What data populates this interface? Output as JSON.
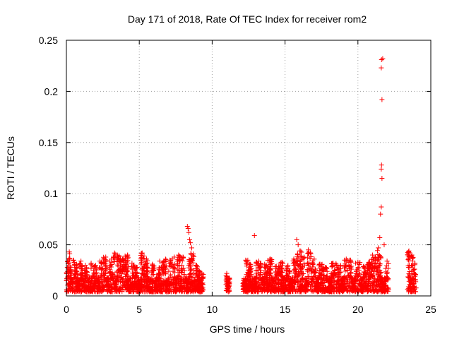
{
  "chart_data": {
    "type": "scatter",
    "title": "Day 171 of 2018, Rate Of TEC Index for receiver rom2",
    "xlabel": "GPS time / hours",
    "ylabel": "ROTI / TECUs",
    "xlim": [
      0,
      25
    ],
    "ylim": [
      0,
      0.25
    ],
    "x_ticks": [
      0,
      5,
      10,
      15,
      20,
      25
    ],
    "y_ticks": [
      0,
      0.05,
      0.1,
      0.15,
      0.2,
      0.25
    ],
    "x_tick_labels": [
      "0",
      "5",
      "10",
      "15",
      "20",
      "25"
    ],
    "y_tick_labels": [
      "0",
      "0.05",
      "0.1",
      "0.15",
      "0.2",
      "0.25"
    ],
    "grid": true,
    "marker": "plus",
    "color": "#ff0000",
    "points": [
      [
        0.1,
        0.034
      ],
      [
        0.2,
        0.043
      ],
      [
        0.3,
        0.028
      ],
      [
        0.5,
        0.035
      ],
      [
        0.7,
        0.031
      ],
      [
        1.0,
        0.034
      ],
      [
        1.3,
        0.03
      ],
      [
        1.7,
        0.032
      ],
      [
        2.0,
        0.03
      ],
      [
        2.3,
        0.034
      ],
      [
        2.7,
        0.038
      ],
      [
        3.1,
        0.036
      ],
      [
        3.3,
        0.042
      ],
      [
        3.5,
        0.04
      ],
      [
        4.2,
        0.04
      ],
      [
        4.5,
        0.032
      ],
      [
        4.8,
        0.028
      ],
      [
        5.2,
        0.042
      ],
      [
        5.5,
        0.036
      ],
      [
        5.9,
        0.031
      ],
      [
        6.4,
        0.034
      ],
      [
        6.8,
        0.036
      ],
      [
        7.1,
        0.035
      ],
      [
        7.4,
        0.038
      ],
      [
        7.7,
        0.04
      ],
      [
        8.0,
        0.038
      ],
      [
        8.3,
        0.068
      ],
      [
        8.35,
        0.066
      ],
      [
        8.4,
        0.062
      ],
      [
        8.45,
        0.055
      ],
      [
        8.5,
        0.052
      ],
      [
        8.6,
        0.047
      ],
      [
        8.7,
        0.041
      ],
      [
        8.9,
        0.03
      ],
      [
        9.1,
        0.025
      ],
      [
        9.3,
        0.022
      ],
      [
        11.0,
        0.022
      ],
      [
        11.1,
        0.015
      ],
      [
        12.3,
        0.035
      ],
      [
        12.6,
        0.031
      ],
      [
        12.9,
        0.059
      ],
      [
        13.2,
        0.034
      ],
      [
        13.6,
        0.031
      ],
      [
        14.0,
        0.036
      ],
      [
        14.4,
        0.029
      ],
      [
        14.8,
        0.033
      ],
      [
        15.2,
        0.03
      ],
      [
        15.6,
        0.036
      ],
      [
        15.8,
        0.055
      ],
      [
        15.9,
        0.05
      ],
      [
        16.0,
        0.044
      ],
      [
        16.3,
        0.038
      ],
      [
        16.6,
        0.045
      ],
      [
        17.0,
        0.036
      ],
      [
        17.4,
        0.031
      ],
      [
        17.8,
        0.028
      ],
      [
        18.3,
        0.032
      ],
      [
        18.8,
        0.03
      ],
      [
        19.2,
        0.036
      ],
      [
        19.5,
        0.035
      ],
      [
        20.0,
        0.033
      ],
      [
        20.4,
        0.029
      ],
      [
        20.8,
        0.033
      ],
      [
        21.0,
        0.04
      ],
      [
        21.2,
        0.038
      ],
      [
        21.4,
        0.047
      ],
      [
        21.5,
        0.057
      ],
      [
        21.55,
        0.08
      ],
      [
        21.6,
        0.087
      ],
      [
        21.65,
        0.115
      ],
      [
        21.6,
        0.124
      ],
      [
        21.62,
        0.128
      ],
      [
        21.65,
        0.192
      ],
      [
        21.6,
        0.223
      ],
      [
        21.62,
        0.231
      ],
      [
        21.7,
        0.232
      ],
      [
        21.8,
        0.05
      ],
      [
        22.0,
        0.034
      ],
      [
        23.5,
        0.044
      ],
      [
        23.7,
        0.04
      ],
      [
        23.9,
        0.032
      ],
      [
        0.4,
        0.012
      ],
      [
        0.8,
        0.018
      ],
      [
        1.2,
        0.008
      ],
      [
        1.6,
        0.014
      ],
      [
        2.2,
        0.01
      ],
      [
        2.8,
        0.016
      ],
      [
        3.4,
        0.011
      ],
      [
        4.3,
        0.015
      ],
      [
        5.0,
        0.009
      ],
      [
        5.7,
        0.013
      ],
      [
        6.2,
        0.008
      ],
      [
        6.9,
        0.012
      ],
      [
        7.5,
        0.009
      ],
      [
        8.2,
        0.014
      ],
      [
        8.8,
        0.01
      ],
      [
        9.2,
        0.012
      ],
      [
        11.0,
        0.005
      ],
      [
        12.2,
        0.006
      ],
      [
        12.8,
        0.01
      ],
      [
        13.5,
        0.008
      ],
      [
        14.2,
        0.012
      ],
      [
        14.9,
        0.007
      ],
      [
        15.5,
        0.01
      ],
      [
        16.4,
        0.009
      ],
      [
        17.2,
        0.012
      ],
      [
        18.0,
        0.008
      ],
      [
        18.9,
        0.011
      ],
      [
        19.6,
        0.007
      ],
      [
        20.3,
        0.01
      ],
      [
        21.0,
        0.009
      ],
      [
        21.8,
        0.012
      ],
      [
        23.6,
        0.008
      ],
      [
        23.9,
        0.006
      ]
    ]
  }
}
